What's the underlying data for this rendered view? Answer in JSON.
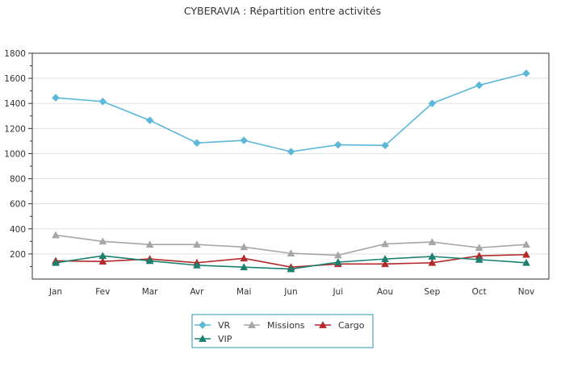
{
  "chart_data": {
    "type": "line",
    "title": "CYBERAVIA : Répartition entre activités",
    "xlabel": "",
    "ylabel": "",
    "categories": [
      "Jan",
      "Fev",
      "Mar",
      "Avr",
      "Mai",
      "Jun",
      "Jui",
      "Aou",
      "Sep",
      "Oct",
      "Nov"
    ],
    "ylim": [
      0,
      1800
    ],
    "yticks": [
      200,
      400,
      600,
      800,
      1000,
      1200,
      1400,
      1600,
      1800
    ],
    "grid": "horizontal",
    "legend_position": "bottom",
    "series": [
      {
        "name": "VR",
        "color": "#5bb8d9",
        "marker": "diamond",
        "values": [
          1445,
          1415,
          1265,
          1085,
          1105,
          1015,
          1070,
          1065,
          1400,
          1545,
          1640
        ]
      },
      {
        "name": "Missions",
        "color": "#a6a6a6",
        "marker": "triangle",
        "values": [
          350,
          300,
          275,
          275,
          255,
          205,
          190,
          280,
          295,
          250,
          275
        ]
      },
      {
        "name": "Cargo",
        "color": "#b22a2a",
        "marker": "triangle",
        "values": [
          145,
          140,
          160,
          130,
          165,
          95,
          120,
          120,
          130,
          185,
          195
        ]
      },
      {
        "name": "VIP",
        "color": "#1a8070",
        "marker": "triangle",
        "values": [
          130,
          185,
          145,
          110,
          95,
          80,
          135,
          160,
          180,
          155,
          130
        ]
      }
    ]
  }
}
